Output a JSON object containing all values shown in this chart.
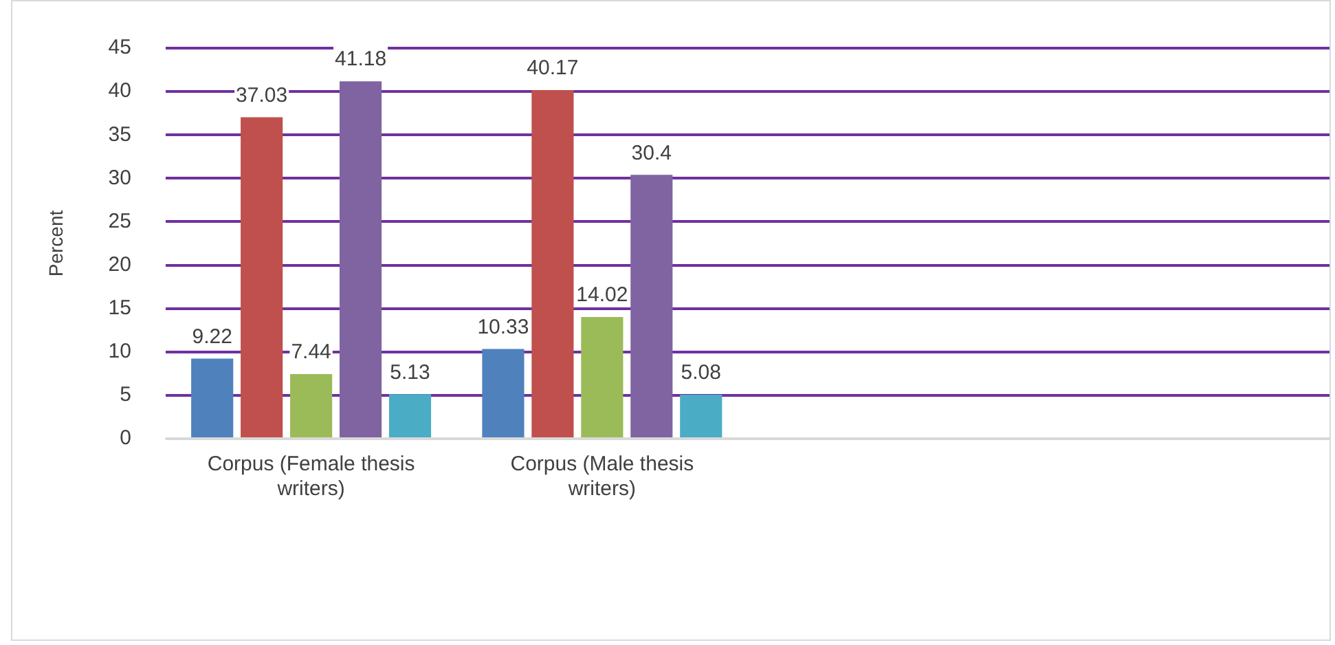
{
  "chart_data": {
    "type": "bar",
    "ylabel": "Percent",
    "categories": [
      "Corpus (Female thesis writers)",
      "Corpus (Male thesis writers)",
      null,
      null
    ],
    "series": [
      {
        "color": "#4f81bd",
        "values": [
          9.22,
          10.33,
          null,
          null
        ]
      },
      {
        "color": "#c0504d",
        "values": [
          37.03,
          40.17,
          null,
          null
        ]
      },
      {
        "color": "#9bbb59",
        "values": [
          7.44,
          14.02,
          null,
          null
        ]
      },
      {
        "color": "#8064a2",
        "values": [
          41.18,
          30.4,
          null,
          null
        ]
      },
      {
        "color": "#4bacc6",
        "values": [
          5.13,
          5.08,
          null,
          null
        ]
      }
    ],
    "ylim": [
      0,
      45
    ],
    "yticks": [
      0,
      5,
      10,
      15,
      20,
      25,
      30,
      35,
      40,
      45
    ],
    "grid": "y",
    "data_labels": true,
    "legend": false
  }
}
